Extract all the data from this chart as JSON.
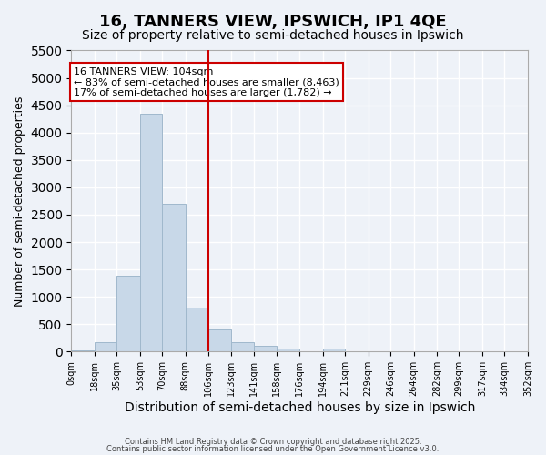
{
  "title": "16, TANNERS VIEW, IPSWICH, IP1 4QE",
  "subtitle": "Size of property relative to semi-detached houses in Ipswich",
  "xlabel": "Distribution of semi-detached houses by size in Ipswich",
  "ylabel": "Number of semi-detached properties",
  "bin_labels": [
    "0sqm",
    "18sqm",
    "35sqm",
    "53sqm",
    "70sqm",
    "88sqm",
    "106sqm",
    "123sqm",
    "141sqm",
    "158sqm",
    "176sqm",
    "194sqm",
    "211sqm",
    "229sqm",
    "246sqm",
    "264sqm",
    "282sqm",
    "299sqm",
    "317sqm",
    "334sqm",
    "352sqm"
  ],
  "bin_edges": [
    0,
    18,
    35,
    53,
    70,
    88,
    106,
    123,
    141,
    158,
    176,
    194,
    211,
    229,
    246,
    264,
    282,
    299,
    317,
    334,
    352
  ],
  "bar_heights": [
    30,
    170,
    1380,
    4350,
    2700,
    800,
    400,
    175,
    100,
    50,
    0,
    50,
    0,
    0,
    0,
    0,
    0,
    0,
    0,
    0
  ],
  "bar_color": "#c8d8e8",
  "bar_edgecolor": "#a0b8cc",
  "vline_x": 106,
  "vline_color": "#cc0000",
  "ylim": [
    0,
    5500
  ],
  "yticks": [
    0,
    500,
    1000,
    1500,
    2000,
    2500,
    3000,
    3500,
    4000,
    4500,
    5000,
    5500
  ],
  "annotation_title": "16 TANNERS VIEW: 104sqm",
  "annotation_line1": "← 83% of semi-detached houses are smaller (8,463)",
  "annotation_line2": "17% of semi-detached houses are larger (1,782) →",
  "annotation_box_color": "#ffffff",
  "annotation_box_edgecolor": "#cc0000",
  "footer_line1": "Contains HM Land Registry data © Crown copyright and database right 2025.",
  "footer_line2": "Contains public sector information licensed under the Open Government Licence v3.0.",
  "background_color": "#eef2f8",
  "grid_color": "#ffffff",
  "title_fontsize": 13,
  "subtitle_fontsize": 10,
  "xlabel_fontsize": 10,
  "ylabel_fontsize": 9
}
